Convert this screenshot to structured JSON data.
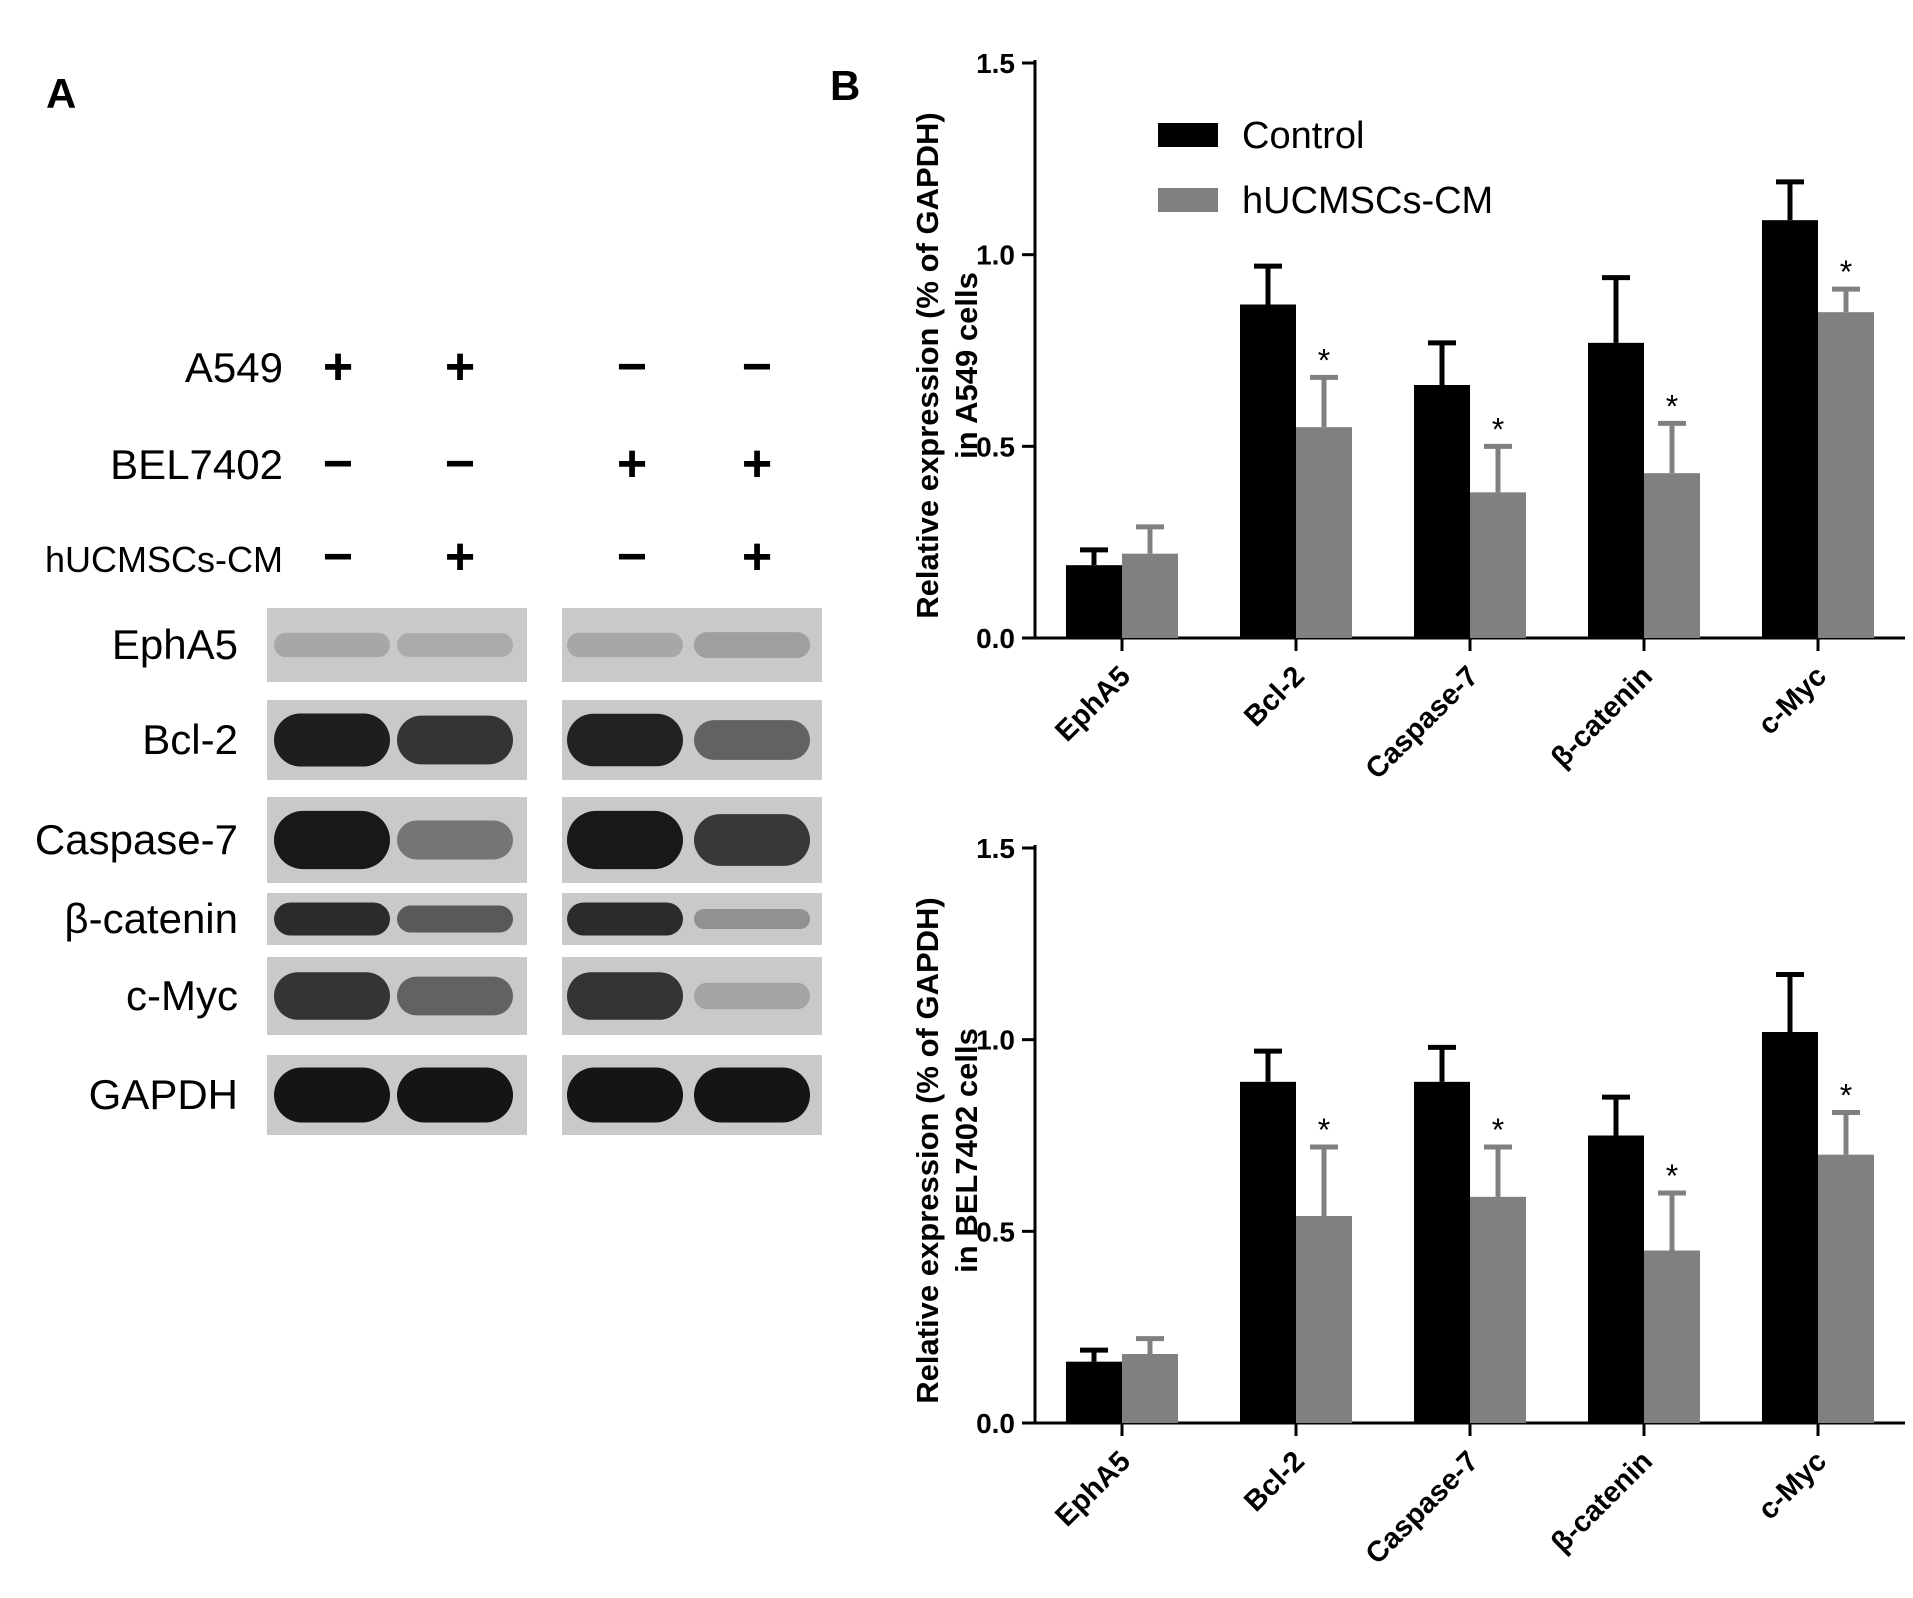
{
  "panel_labels": {
    "a": "A",
    "b": "B"
  },
  "western_blot": {
    "conditions": [
      {
        "label": "A549",
        "signs": [
          "+",
          "+",
          "−",
          "−"
        ]
      },
      {
        "label": "BEL7402",
        "signs": [
          "−",
          "−",
          "+",
          "+"
        ]
      },
      {
        "label": "hUCMSCs-CM",
        "signs": [
          "−",
          "+",
          "−",
          "+"
        ]
      }
    ],
    "proteins": [
      "EphA5",
      "Bcl-2",
      "Caspase-7",
      "β-catenin",
      "c-Myc",
      "GAPDH"
    ],
    "band_intensity": [
      [
        0.18,
        0.16,
        0.18,
        0.22
      ],
      [
        0.92,
        0.8,
        0.9,
        0.55
      ],
      [
        0.95,
        0.45,
        0.95,
        0.78
      ],
      [
        0.85,
        0.6,
        0.85,
        0.3
      ],
      [
        0.8,
        0.55,
        0.8,
        0.2
      ],
      [
        0.97,
        0.97,
        0.97,
        0.97
      ]
    ]
  },
  "colors": {
    "control": "#000000",
    "treated": "#808080"
  },
  "chart_data": [
    {
      "type": "bar",
      "ylabel_line1": "Relative expression (% of GAPDH)",
      "ylabel_line2": "in A549 cells",
      "categories": [
        "EphA5",
        "Bcl-2",
        "Caspase-7",
        "β-catenin",
        "c-Myc"
      ],
      "ylim": [
        0,
        1.5
      ],
      "yticks": [
        "0.0",
        "0.5",
        "1.0",
        "1.5"
      ],
      "series": [
        {
          "name": "Control",
          "values": [
            0.19,
            0.87,
            0.66,
            0.77,
            1.09
          ],
          "errors": [
            0.04,
            0.1,
            0.11,
            0.17,
            0.1
          ]
        },
        {
          "name": "hUCMSCs-CM",
          "values": [
            0.22,
            0.55,
            0.38,
            0.43,
            0.85
          ],
          "errors": [
            0.07,
            0.13,
            0.12,
            0.13,
            0.06
          ]
        }
      ],
      "significance": [
        "",
        "*",
        "*",
        "*",
        "*"
      ],
      "legend_position": "top-left"
    },
    {
      "type": "bar",
      "ylabel_line1": "Relative expression (% of GAPDH)",
      "ylabel_line2": "in BEL7402 cells",
      "categories": [
        "EphA5",
        "Bcl-2",
        "Caspase-7",
        "β-catenin",
        "c-Myc"
      ],
      "ylim": [
        0,
        1.5
      ],
      "yticks": [
        "0.0",
        "0.5",
        "1.0",
        "1.5"
      ],
      "series": [
        {
          "name": "Control",
          "values": [
            0.16,
            0.89,
            0.89,
            0.75,
            1.02
          ],
          "errors": [
            0.03,
            0.08,
            0.09,
            0.1,
            0.15
          ]
        },
        {
          "name": "hUCMSCs-CM",
          "values": [
            0.18,
            0.54,
            0.59,
            0.45,
            0.7
          ],
          "errors": [
            0.04,
            0.18,
            0.13,
            0.15,
            0.11
          ]
        }
      ],
      "significance": [
        "",
        "*",
        "*",
        "*",
        "*"
      ]
    }
  ]
}
